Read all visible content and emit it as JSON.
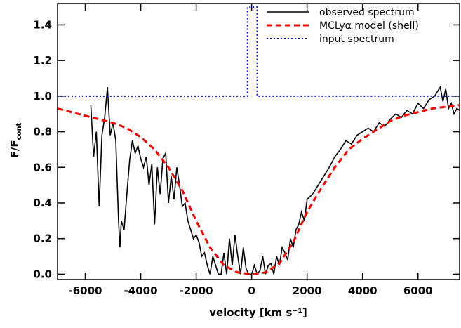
{
  "chart_data": {
    "type": "line",
    "xlabel": "velocity [km s⁻¹]",
    "ylabel": {
      "main": "F/F",
      "sub": "cont"
    },
    "xlim": [
      -7000,
      7500
    ],
    "ylim": [
      -0.03,
      1.52
    ],
    "xticks": [
      -6000,
      -4000,
      -2000,
      0,
      2000,
      4000,
      6000
    ],
    "yticks": [
      {
        "value": 0,
        "label": "0.0"
      },
      0.2,
      0.4,
      0.6,
      0.8,
      {
        "value": 1,
        "label": "1.0"
      },
      1.2,
      1.4
    ],
    "legend": "upper right",
    "series": [
      {
        "name": "observed spectrum",
        "color": "#000000",
        "style": "solid",
        "x": [
          -5800,
          -5700,
          -5600,
          -5500,
          -5400,
          -5300,
          -5200,
          -5100,
          -5000,
          -4900,
          -4800,
          -4750,
          -4700,
          -4600,
          -4500,
          -4400,
          -4300,
          -4200,
          -4100,
          -4000,
          -3900,
          -3800,
          -3700,
          -3600,
          -3500,
          -3400,
          -3300,
          -3200,
          -3100,
          -3000,
          -2900,
          -2800,
          -2700,
          -2600,
          -2500,
          -2400,
          -2300,
          -2200,
          -2100,
          -2000,
          -1900,
          -1800,
          -1700,
          -1600,
          -1500,
          -1400,
          -1300,
          -1200,
          -1100,
          -1000,
          -900,
          -800,
          -700,
          -600,
          -500,
          -400,
          -300,
          -200,
          -100,
          0,
          100,
          200,
          300,
          400,
          500,
          600,
          700,
          800,
          900,
          1000,
          1100,
          1200,
          1300,
          1400,
          1500,
          1600,
          1700,
          1800,
          1900,
          2000,
          2200,
          2400,
          2600,
          2800,
          3000,
          3200,
          3400,
          3600,
          3800,
          4000,
          4200,
          4400,
          4600,
          4800,
          5000,
          5200,
          5400,
          5600,
          5800,
          6000,
          6200,
          6400,
          6600,
          6800,
          6900,
          7000,
          7100,
          7200,
          7300,
          7400,
          7500
        ],
        "values": [
          0.95,
          0.66,
          0.8,
          0.38,
          0.78,
          0.88,
          1.05,
          0.78,
          0.85,
          0.75,
          0.3,
          0.15,
          0.3,
          0.25,
          0.45,
          0.64,
          0.75,
          0.68,
          0.72,
          0.65,
          0.6,
          0.66,
          0.5,
          0.62,
          0.28,
          0.6,
          0.45,
          0.65,
          0.68,
          0.4,
          0.55,
          0.42,
          0.6,
          0.5,
          0.38,
          0.4,
          0.3,
          0.25,
          0.2,
          0.22,
          0.18,
          0.1,
          0.12,
          0.05,
          0.0,
          0.1,
          0.05,
          0.0,
          0.0,
          0.12,
          0.0,
          0.2,
          0.05,
          0.22,
          0.1,
          0.0,
          0.15,
          0.03,
          0.0,
          0.0,
          0.05,
          0.0,
          0.02,
          0.1,
          0.0,
          0.05,
          0.06,
          0.0,
          0.1,
          0.05,
          0.15,
          0.12,
          0.08,
          0.2,
          0.15,
          0.25,
          0.28,
          0.35,
          0.3,
          0.42,
          0.45,
          0.5,
          0.55,
          0.6,
          0.66,
          0.7,
          0.75,
          0.73,
          0.78,
          0.8,
          0.82,
          0.8,
          0.85,
          0.83,
          0.87,
          0.9,
          0.88,
          0.92,
          0.9,
          0.96,
          0.93,
          0.98,
          1.0,
          1.05,
          0.97,
          1.04,
          0.93,
          0.96,
          0.9,
          0.93,
          0.92
        ]
      },
      {
        "name": "MCLyα model (shell)",
        "color": "#ff0000",
        "style": "dashed",
        "x": [
          -7000,
          -6000,
          -5000,
          -4500,
          -4000,
          -3500,
          -3000,
          -2500,
          -2000,
          -1500,
          -1000,
          -500,
          0,
          500,
          1000,
          1500,
          2000,
          2500,
          3000,
          3500,
          4000,
          4500,
          5000,
          5500,
          6000,
          6500,
          7000,
          7500
        ],
        "values": [
          0.93,
          0.89,
          0.85,
          0.82,
          0.77,
          0.7,
          0.6,
          0.47,
          0.3,
          0.15,
          0.05,
          0.01,
          0.0,
          0.01,
          0.06,
          0.18,
          0.35,
          0.48,
          0.6,
          0.7,
          0.76,
          0.81,
          0.86,
          0.89,
          0.91,
          0.93,
          0.94,
          0.95
        ]
      },
      {
        "name": "input spectrum",
        "color": "#0000ff",
        "style": "dotted",
        "x": [
          -7000,
          -150,
          -150,
          200,
          200,
          7500
        ],
        "values": [
          1.0,
          1.0,
          1.5,
          1.5,
          1.0,
          1.0
        ]
      }
    ]
  }
}
